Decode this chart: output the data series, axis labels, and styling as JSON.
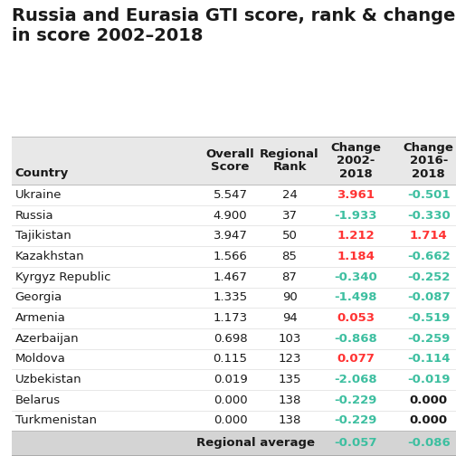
{
  "title": "Russia and Eurasia GTI score, rank & change\nin score 2002–2018",
  "col_headers": [
    "Country",
    "Overall\nScore",
    "Regional\nRank",
    "Change\n2002-\n2018",
    "Change\n2016-\n2018"
  ],
  "rows": [
    {
      "country": "Ukraine",
      "score": "5.547",
      "rank": "24",
      "change0218": "3.961",
      "change1618": "-0.501",
      "c0218_color": "red",
      "c1618_color": "teal"
    },
    {
      "country": "Russia",
      "score": "4.900",
      "rank": "37",
      "change0218": "-1.933",
      "change1618": "-0.330",
      "c0218_color": "teal",
      "c1618_color": "teal"
    },
    {
      "country": "Tajikistan",
      "score": "3.947",
      "rank": "50",
      "change0218": "1.212",
      "change1618": "1.714",
      "c0218_color": "red",
      "c1618_color": "red"
    },
    {
      "country": "Kazakhstan",
      "score": "1.566",
      "rank": "85",
      "change0218": "1.184",
      "change1618": "-0.662",
      "c0218_color": "red",
      "c1618_color": "teal"
    },
    {
      "country": "Kyrgyz Republic",
      "score": "1.467",
      "rank": "87",
      "change0218": "-0.340",
      "change1618": "-0.252",
      "c0218_color": "teal",
      "c1618_color": "teal"
    },
    {
      "country": "Georgia",
      "score": "1.335",
      "rank": "90",
      "change0218": "-1.498",
      "change1618": "-0.087",
      "c0218_color": "teal",
      "c1618_color": "teal"
    },
    {
      "country": "Armenia",
      "score": "1.173",
      "rank": "94",
      "change0218": "0.053",
      "change1618": "-0.519",
      "c0218_color": "red",
      "c1618_color": "teal"
    },
    {
      "country": "Azerbaijan",
      "score": "0.698",
      "rank": "103",
      "change0218": "-0.868",
      "change1618": "-0.259",
      "c0218_color": "teal",
      "c1618_color": "teal"
    },
    {
      "country": "Moldova",
      "score": "0.115",
      "rank": "123",
      "change0218": "0.077",
      "change1618": "-0.114",
      "c0218_color": "red",
      "c1618_color": "teal"
    },
    {
      "country": "Uzbekistan",
      "score": "0.019",
      "rank": "135",
      "change0218": "-2.068",
      "change1618": "-0.019",
      "c0218_color": "teal",
      "c1618_color": "teal"
    },
    {
      "country": "Belarus",
      "score": "0.000",
      "rank": "138",
      "change0218": "-0.229",
      "change1618": "0.000",
      "c0218_color": "teal",
      "c1618_color": "black"
    },
    {
      "country": "Turkmenistan",
      "score": "0.000",
      "rank": "138",
      "change0218": "-0.229",
      "change1618": "0.000",
      "c0218_color": "teal",
      "c1618_color": "black"
    }
  ],
  "footer": {
    "label": "Regional average",
    "change0218": "-0.057",
    "change1618": "-0.086",
    "c0218_color": "teal",
    "c1618_color": "teal"
  },
  "header_bg": "#e8e8e8",
  "footer_bg": "#d4d4d4",
  "title_fontsize": 14,
  "body_fontsize": 9.5,
  "header_fontsize": 9.5,
  "red_color": "#FF3333",
  "teal_color": "#3DBFA0",
  "black_color": "#1a1a1a",
  "text_color": "#1a1a1a"
}
